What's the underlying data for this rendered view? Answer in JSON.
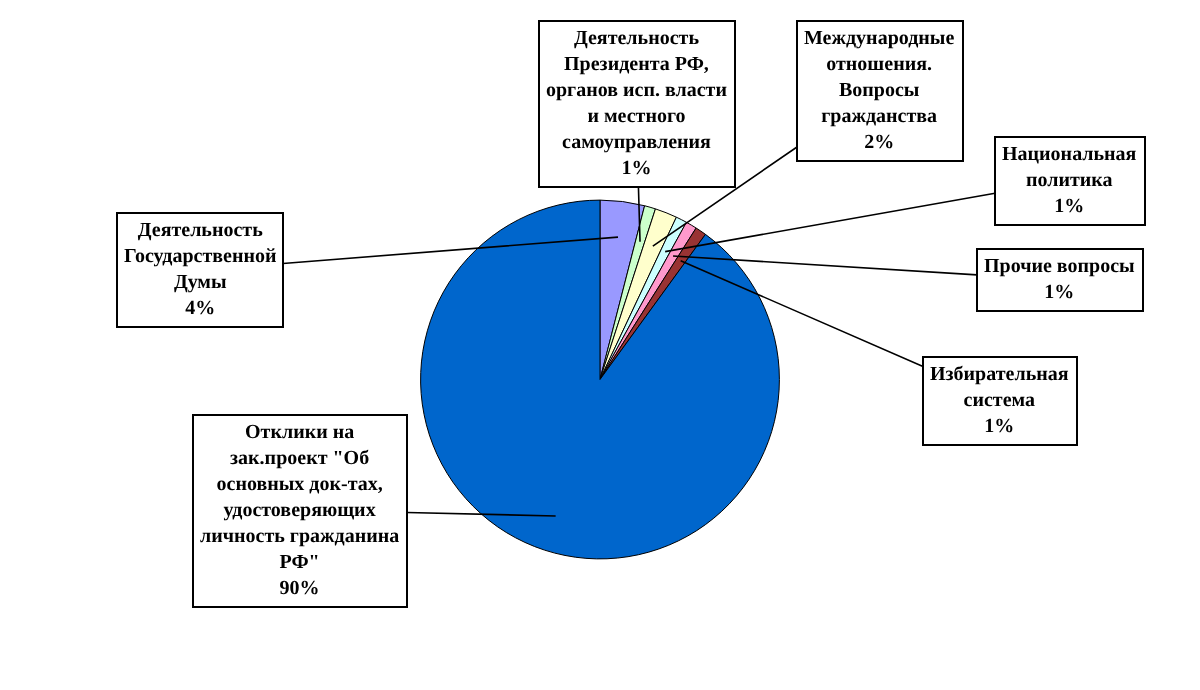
{
  "chart_data": {
    "type": "pie",
    "categories": [
      "Деятельность Государственной Думы",
      "Деятельность Президента РФ, органов исп. власти и местного самоуправления",
      "Международные отношения. Вопросы гражданства",
      "Национальная политика",
      "Прочие вопросы",
      "Избирательная система",
      "Отклики на зак.проект \"Об основных док-тах, удостоверяющих личность гражданина РФ\""
    ],
    "values": [
      4,
      1,
      2,
      1,
      1,
      1,
      90
    ],
    "value_labels": [
      "4%",
      "1%",
      "2%",
      "1%",
      "1%",
      "1%",
      "90%"
    ],
    "colors": [
      "#9999ff",
      "#ccffcc",
      "#ffffcc",
      "#ccffff",
      "#ff99cc",
      "#993333",
      "#0066cc"
    ],
    "legend": false
  }
}
